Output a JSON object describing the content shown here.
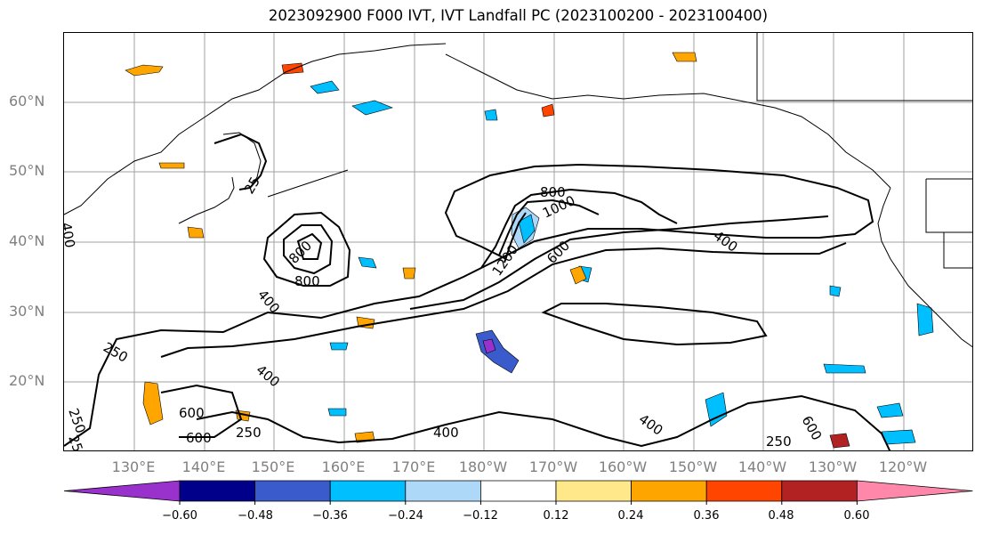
{
  "title": "2023092900 F000 IVT, IVT Landfall PC (2023100200 - 2023100400)",
  "lat_labels": [
    "60°N",
    "50°N",
    "40°N",
    "30°N",
    "20°N"
  ],
  "lon_labels": [
    "130°E",
    "140°E",
    "150°E",
    "160°E",
    "170°E",
    "180°W",
    "170°W",
    "160°W",
    "150°W",
    "140°W",
    "130°W",
    "120°W"
  ],
  "contour_labels": [
    "25",
    "800",
    "1000",
    "1200",
    "800",
    "600",
    "400",
    "400",
    "800",
    "400",
    "250",
    "250",
    "400",
    "600",
    "600",
    "250",
    "400",
    "400",
    "600",
    "250",
    "25"
  ],
  "colorbar": {
    "tick_labels": [
      "−0.60",
      "−0.48",
      "−0.36",
      "−0.24",
      "−0.12",
      "0.12",
      "0.24",
      "0.36",
      "0.48",
      "0.60"
    ],
    "colors": [
      "#9932cc",
      "#00008b",
      "#3a5bcc",
      "#00bfff",
      "#add8f8",
      "#ffffff",
      "#ffe88a",
      "#ffa500",
      "#ff4500",
      "#b22222",
      "#ff88aa"
    ]
  },
  "colors": {
    "grid": "#a0a0a0",
    "contour": "#000000",
    "coast": "#000000",
    "axis_text": "#808080"
  }
}
